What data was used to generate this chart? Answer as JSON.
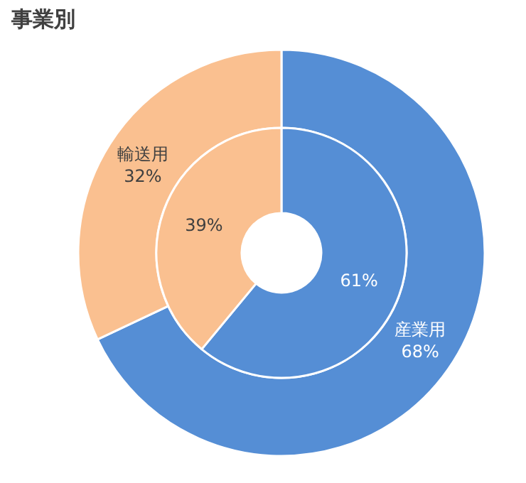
{
  "chart_data": {
    "type": "donut",
    "title": "事業別",
    "categories": [
      "産業用",
      "輸送用"
    ],
    "colors": [
      "#558ed5",
      "#fac090"
    ],
    "series": [
      {
        "values": [
          68,
          32
        ],
        "value_labels": [
          "68%",
          "32%"
        ]
      },
      {
        "values": [
          61,
          39
        ],
        "value_labels": [
          "61%",
          "39%"
        ]
      }
    ]
  }
}
